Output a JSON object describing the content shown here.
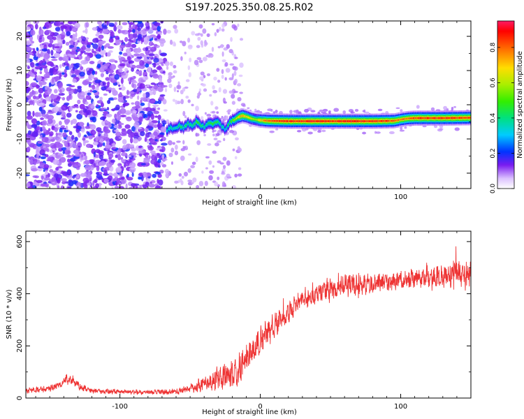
{
  "title": "S197.2025.350.08.25.R02",
  "chart_data": [
    {
      "type": "heatmap",
      "name": "spectrogram",
      "xlabel": "Height of straight line (km)",
      "ylabel": "Frequency (Hz)",
      "xlim": [
        -167,
        150
      ],
      "ylim": [
        -24.5,
        24.5
      ],
      "x_ticks": [
        -100,
        0,
        100
      ],
      "x_tick_labels": [
        "-100",
        "0",
        "100"
      ],
      "y_ticks": [
        -20,
        -10,
        0,
        10,
        20
      ],
      "y_tick_labels": [
        "-20",
        "-10",
        "0",
        "10",
        "20"
      ],
      "colorbar": {
        "label": "Normalized spectral amplitude",
        "range": [
          0,
          0.95
        ],
        "ticks": [
          0.0,
          0.2,
          0.4,
          0.6,
          0.8
        ],
        "tick_labels": [
          "0.0",
          "0.2",
          "0.4",
          "0.6",
          "0.8"
        ]
      },
      "noise_region_x": [
        -167,
        -68
      ],
      "signal_track": {
        "x": [
          -67,
          -64,
          -61,
          -58,
          -55,
          -52,
          -49,
          -46,
          -43,
          -40,
          -37,
          -34,
          -31,
          -28,
          -25,
          -22,
          -19,
          -16,
          -13,
          -10,
          -7,
          -4,
          -1,
          5,
          20,
          40,
          60,
          80,
          95,
          100,
          105,
          110,
          130,
          150
        ],
        "freq": [
          -7.5,
          -6.8,
          -7.2,
          -6.0,
          -6.8,
          -5.5,
          -6.3,
          -5.0,
          -6.0,
          -6.5,
          -5.2,
          -5.5,
          -5.0,
          -6.2,
          -7.3,
          -5.0,
          -4.5,
          -3.6,
          -3.2,
          -3.5,
          -4.0,
          -4.3,
          -4.5,
          -4.7,
          -4.8,
          -4.8,
          -4.8,
          -4.8,
          -4.7,
          -4.3,
          -4.0,
          -3.9,
          -3.9,
          -3.8
        ],
        "amplitude": [
          0.35,
          0.4,
          0.35,
          0.45,
          0.4,
          0.45,
          0.4,
          0.5,
          0.45,
          0.4,
          0.45,
          0.5,
          0.45,
          0.4,
          0.35,
          0.5,
          0.55,
          0.7,
          0.75,
          0.7,
          0.65,
          0.6,
          0.7,
          0.85,
          0.9,
          0.92,
          0.9,
          0.9,
          0.85,
          0.8,
          0.82,
          0.88,
          0.9,
          0.88
        ]
      }
    },
    {
      "type": "line",
      "name": "snr",
      "xlabel": "Height of straight line (km)",
      "ylabel": "SNR (10 * v/v)",
      "xlim": [
        -167,
        150
      ],
      "ylim": [
        0,
        640
      ],
      "x_ticks": [
        -100,
        0,
        100
      ],
      "x_tick_labels": [
        "-100",
        "0",
        "100"
      ],
      "y_ticks": [
        0,
        200,
        400,
        600
      ],
      "y_tick_labels": [
        "0",
        "200",
        "400",
        "600"
      ],
      "color": "#ee3333",
      "envelope": {
        "x": [
          -167,
          -150,
          -142,
          -138,
          -134,
          -128,
          -120,
          -100,
          -80,
          -60,
          -50,
          -40,
          -30,
          -20,
          -10,
          0,
          10,
          20,
          30,
          40,
          50,
          60,
          70,
          80,
          90,
          100,
          110,
          120,
          130,
          140,
          150
        ],
        "mid": [
          28,
          35,
          55,
          75,
          68,
          42,
          28,
          24,
          22,
          24,
          35,
          52,
          75,
          95,
          140,
          220,
          280,
          330,
          375,
          405,
          420,
          440,
          435,
          440,
          445,
          450,
          460,
          465,
          470,
          480,
          475
        ],
        "amp": [
          12,
          14,
          20,
          25,
          22,
          15,
          12,
          10,
          10,
          12,
          20,
          35,
          55,
          70,
          75,
          60,
          50,
          45,
          42,
          45,
          50,
          55,
          50,
          45,
          42,
          40,
          45,
          50,
          55,
          65,
          60
        ]
      }
    }
  ]
}
